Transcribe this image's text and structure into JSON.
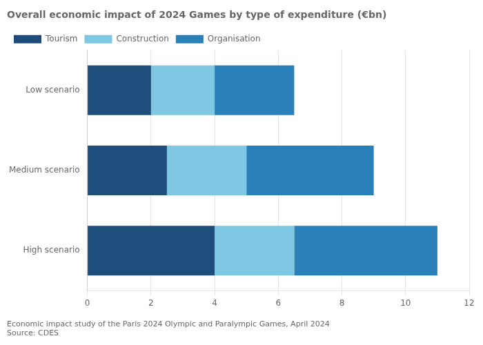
{
  "chart_data": {
    "type": "bar",
    "orientation": "horizontal",
    "stacked": true,
    "title": "Overall economic impact of 2024 Games by type of expenditure (€bn)",
    "categories": [
      "High scenario",
      "Medium scenario",
      "Low scenario"
    ],
    "series": [
      {
        "name": "Tourism",
        "color": "#1e4d7b",
        "values": [
          4.0,
          2.5,
          2.0
        ]
      },
      {
        "name": "Construction",
        "color": "#7ec8e3",
        "values": [
          2.5,
          2.5,
          2.0
        ]
      },
      {
        "name": "Organisation",
        "color": "#2980b9",
        "values": [
          4.5,
          4.0,
          2.5
        ]
      }
    ],
    "xlim": [
      0,
      12
    ],
    "xticks": [
      0,
      2,
      4,
      6,
      8,
      10,
      12
    ],
    "grid": true,
    "legend": "top-left",
    "annotations": [
      "Economic impact study of the Paris 2024 Olympic and Paralympic Games, April 2024",
      "Source: CDES"
    ]
  }
}
